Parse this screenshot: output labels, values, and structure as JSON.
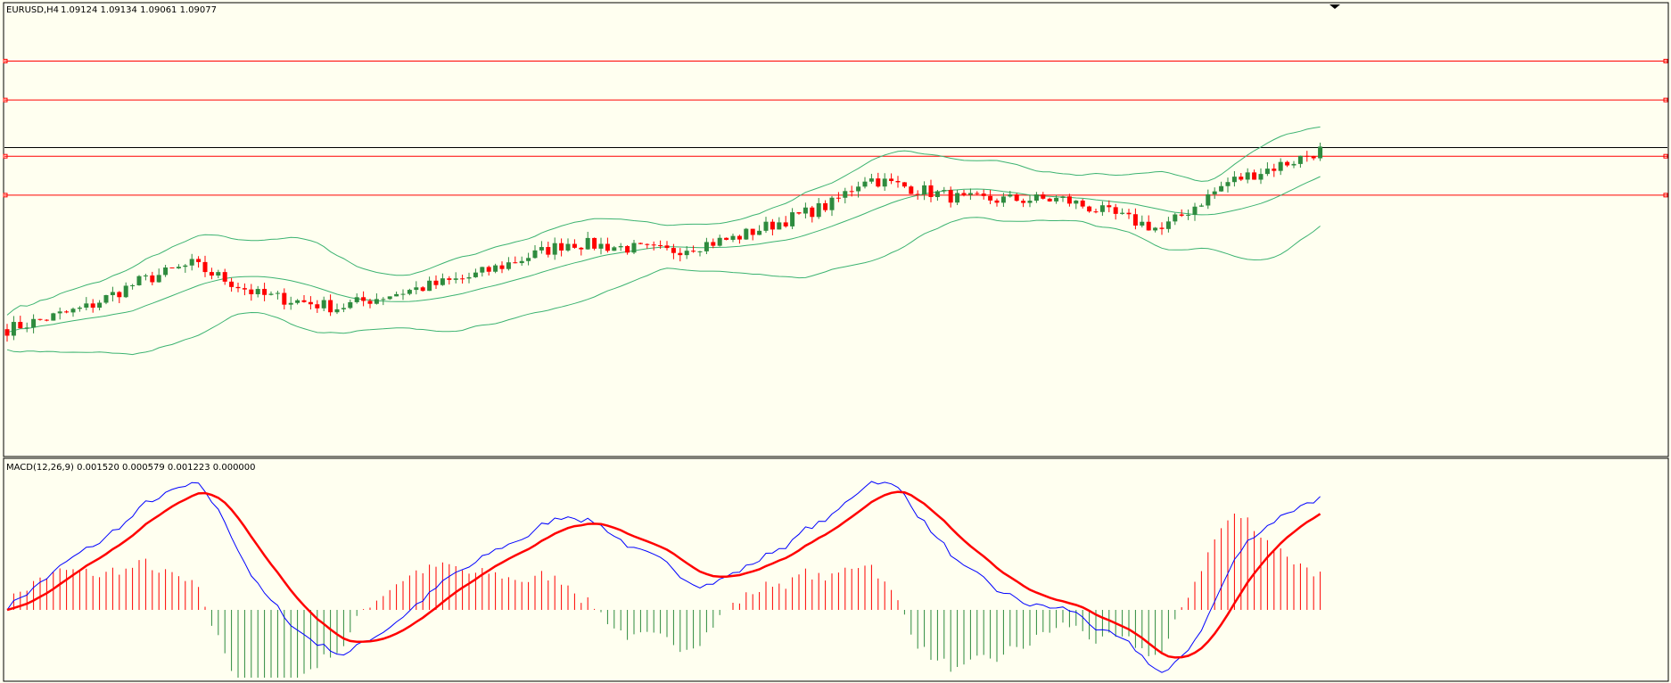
{
  "header": {
    "symbol_label": "EURUSD,H4",
    "ohlc_label": "1.09124 1.09134 1.09061 1.09077"
  },
  "macd": {
    "label": "MACD(12,26,9) 0.001520 0.000579 0.001223 0.000000"
  },
  "colors": {
    "background": "#fffff0",
    "bull": "#2e8b3e",
    "bear": "#ff0000",
    "bands": "#3cb371",
    "macd_line": "#0000ff",
    "signal_line": "#ff0000",
    "level_line": "#ff0000",
    "price_line": "#000000"
  },
  "chart_data": [
    {
      "type": "candlestick",
      "symbol": "EURUSD",
      "timeframe": "H4",
      "bar_count": 200,
      "horizontal_levels_fraction": [
        0.9,
        0.81,
        0.68,
        0.59
      ],
      "current_price_fraction": 0.7,
      "series_shape": {
        "close_path": [
          [
            0,
            0.28
          ],
          [
            12,
            0.33
          ],
          [
            20,
            0.39
          ],
          [
            28,
            0.43
          ],
          [
            38,
            0.36
          ],
          [
            50,
            0.33
          ],
          [
            58,
            0.36
          ],
          [
            70,
            0.4
          ],
          [
            85,
            0.48
          ],
          [
            100,
            0.46
          ],
          [
            110,
            0.49
          ],
          [
            125,
            0.57
          ],
          [
            130,
            0.63
          ],
          [
            145,
            0.58
          ],
          [
            160,
            0.58
          ],
          [
            175,
            0.51
          ],
          [
            185,
            0.62
          ],
          [
            195,
            0.67
          ],
          [
            200,
            0.7
          ]
        ]
      },
      "indicators": [
        "Bollinger Bands"
      ]
    },
    {
      "type": "macd",
      "params": [
        12,
        26,
        9
      ],
      "values": [
        0.00152,
        0.000579,
        0.001223,
        0.0
      ],
      "histogram_positive_color": "#ff0000",
      "histogram_negative_color": "#2e8b3e"
    }
  ]
}
